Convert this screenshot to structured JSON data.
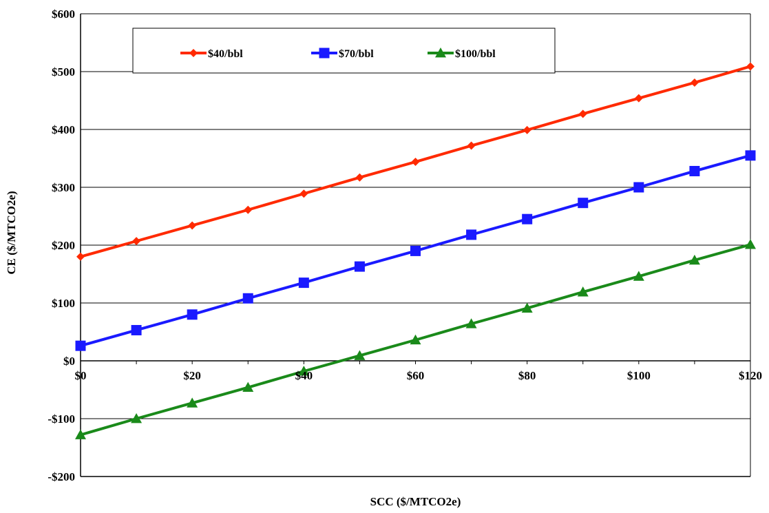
{
  "chart_data": {
    "type": "line",
    "title": "",
    "xlabel": "SCC ($/MTCO2e)",
    "ylabel": "CE ($/MTCO2e)",
    "xlim": [
      0,
      120
    ],
    "ylim": [
      -200,
      600
    ],
    "x": [
      0,
      10,
      20,
      30,
      40,
      50,
      60,
      70,
      80,
      90,
      100,
      110,
      120
    ],
    "x_ticks": [
      0,
      20,
      40,
      60,
      80,
      100,
      120
    ],
    "x_tick_labels": [
      "$0",
      "$20",
      "$40",
      "$60",
      "$80",
      "$100",
      "$120"
    ],
    "y_ticks": [
      -200,
      -100,
      0,
      100,
      200,
      300,
      400,
      500,
      600
    ],
    "y_tick_labels": [
      "-$200",
      "-$100",
      "$0",
      "$100",
      "$200",
      "$300",
      "$400",
      "$500",
      "$600"
    ],
    "grid": "horizontal",
    "legend_position": "top",
    "series": [
      {
        "name": "$40/bbl",
        "color": "#ff2a00",
        "marker": "diamond",
        "values": [
          180,
          207,
          234,
          261,
          289,
          317,
          344,
          372,
          399,
          427,
          454,
          481,
          509
        ]
      },
      {
        "name": "$70/bbl",
        "color": "#1a1aff",
        "marker": "square",
        "values": [
          26,
          53,
          80,
          108,
          135,
          163,
          190,
          218,
          245,
          273,
          300,
          328,
          355
        ]
      },
      {
        "name": "$100/bbl",
        "color": "#1a8a1a",
        "marker": "triangle",
        "values": [
          -128,
          -100,
          -73,
          -46,
          -18,
          9,
          36,
          64,
          91,
          119,
          146,
          174,
          201
        ]
      }
    ]
  }
}
